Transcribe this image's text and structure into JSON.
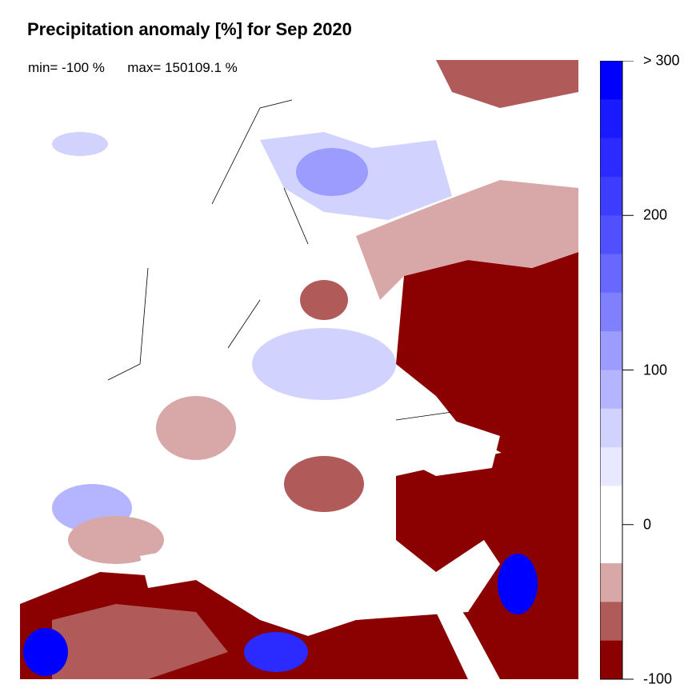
{
  "title": "Precipitation anomaly [%] for Sep 2020",
  "stats": {
    "min_label": "min= -100 %",
    "max_label": "max= 150109.1 %"
  },
  "legend": {
    "bins_top_to_bottom": [
      "#0000ff",
      "#1a1aff",
      "#2b2bff",
      "#3d3dff",
      "#5050ff",
      "#6868ff",
      "#8080ff",
      "#9c9cff",
      "#b4b4ff",
      "#d2d2ff",
      "#e8e8ff",
      "#ffffff",
      "#ffffff",
      "#d8a8a8",
      "#b05a5a",
      "#8b0000"
    ],
    "ticks": [
      {
        "label": "> 300",
        "value": 300
      },
      {
        "label": "200",
        "value": 200
      },
      {
        "label": "100",
        "value": 100
      },
      {
        "label": "0",
        "value": 0
      },
      {
        "label": "-100",
        "value": -100
      }
    ]
  },
  "colors": {
    "dry_strong": "#8b0000",
    "dry_mid": "#b05a5a",
    "dry_light": "#d8a8a8",
    "wet_light": "#d2d2ff",
    "wet_mid": "#8080ff",
    "wet_strong": "#0000ff",
    "borders": "#000000"
  }
}
